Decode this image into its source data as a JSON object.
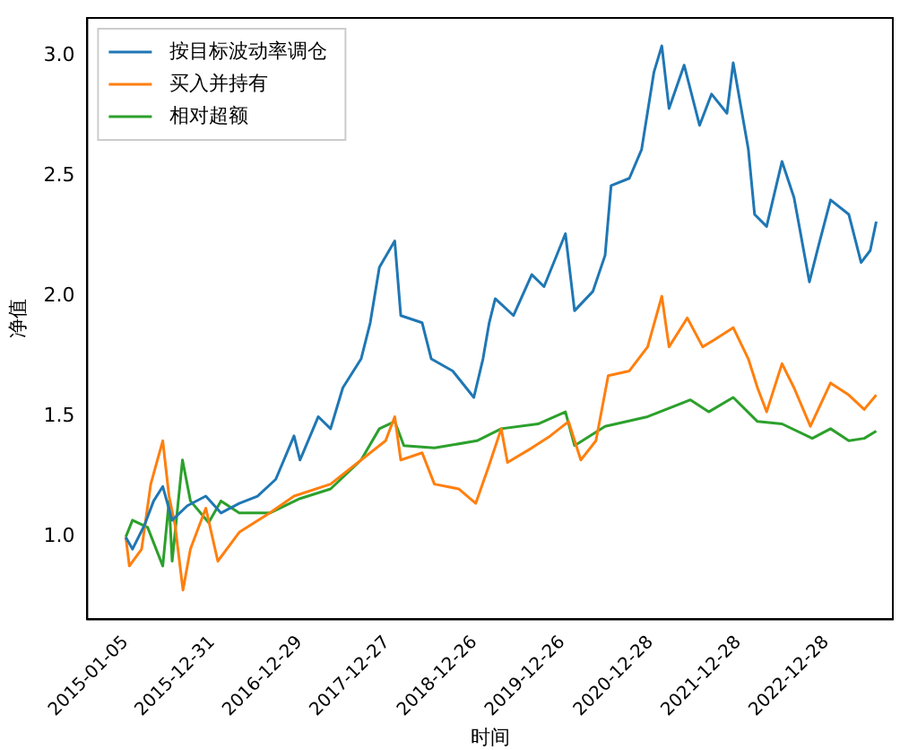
{
  "chart_data": {
    "type": "line",
    "xlabel": "时间",
    "ylabel": "净值",
    "xlim": [
      "2014-07-29",
      "2023-10-01"
    ],
    "ylim": [
      0.658,
      3.156
    ],
    "xticks": [
      "2015-01-05",
      "2015-12-31",
      "2016-12-29",
      "2017-12-27",
      "2018-12-26",
      "2019-12-26",
      "2020-12-28",
      "2021-12-28",
      "2022-12-28"
    ],
    "yticks": [
      {
        "value": 1,
        "label": "1.0"
      },
      1.5,
      {
        "value": 2,
        "label": "2.0"
      },
      2.5,
      {
        "value": 3,
        "label": "3.0"
      }
    ],
    "grid": false,
    "legend": "top left",
    "marker": "none",
    "line_style": "solid",
    "series": [
      {
        "name": "按目标波动率调仓",
        "color": "#1f77b4",
        "x": [
          "2015-01-05",
          "2015-02-02",
          "2015-03-24",
          "2015-05-01",
          "2015-06-08",
          "2015-07-17",
          "2015-09-18",
          "2015-12-04",
          "2016-02-05",
          "2016-04-21",
          "2016-07-06",
          "2016-09-20",
          "2016-12-05",
          "2016-12-30",
          "2017-03-16",
          "2017-05-06",
          "2017-06-26",
          "2017-09-10",
          "2017-10-18",
          "2017-11-25",
          "2018-01-28",
          "2018-02-22",
          "2018-05-22",
          "2018-06-29",
          "2018-09-26",
          "2018-12-23",
          "2019-01-30",
          "2019-02-25",
          "2019-03-22",
          "2019-06-06",
          "2019-08-21",
          "2019-10-11",
          "2020-01-08",
          "2020-02-15",
          "2020-05-01",
          "2020-06-21",
          "2020-07-16",
          "2020-09-30",
          "2020-11-20",
          "2021-01-10",
          "2021-02-12",
          "2021-03-14",
          "2021-05-16",
          "2021-07-19",
          "2021-09-07",
          "2021-11-10",
          "2021-12-06",
          "2022-02-07",
          "2022-03-05",
          "2022-04-24",
          "2022-06-27",
          "2022-08-16",
          "2022-10-19",
          "2022-11-26",
          "2023-01-15",
          "2023-04-01",
          "2023-05-22",
          "2023-06-29",
          "2023-07-24"
        ],
        "values": [
          1.0,
          0.95,
          1.05,
          1.15,
          1.21,
          1.07,
          1.13,
          1.17,
          1.1,
          1.14,
          1.17,
          1.24,
          1.42,
          1.32,
          1.5,
          1.45,
          1.62,
          1.74,
          1.89,
          2.12,
          2.23,
          1.92,
          1.89,
          1.74,
          1.69,
          1.58,
          1.74,
          1.89,
          1.99,
          1.92,
          2.09,
          2.04,
          2.26,
          1.94,
          2.02,
          2.17,
          2.46,
          2.49,
          2.61,
          2.93,
          3.04,
          2.78,
          2.96,
          2.71,
          2.84,
          2.76,
          2.97,
          2.61,
          2.34,
          2.29,
          2.56,
          2.41,
          2.06,
          2.21,
          2.4,
          2.34,
          2.14,
          2.19,
          2.31
        ]
      },
      {
        "name": "买入并持有",
        "color": "#ff7f0e",
        "x": [
          "2015-01-05",
          "2015-01-20",
          "2015-03-12",
          "2015-04-19",
          "2015-06-08",
          "2015-07-04",
          "2015-07-29",
          "2015-08-31",
          "2015-10-01",
          "2015-12-04",
          "2016-01-23",
          "2016-04-21",
          "2016-08-26",
          "2016-12-05",
          "2017-05-06",
          "2017-09-10",
          "2017-12-21",
          "2018-01-28",
          "2018-02-22",
          "2018-05-22",
          "2018-07-12",
          "2018-10-21",
          "2018-12-31",
          "2019-02-25",
          "2019-04-16",
          "2019-05-12",
          "2019-08-21",
          "2019-11-06",
          "2020-01-21",
          "2020-03-12",
          "2020-05-14",
          "2020-07-04",
          "2020-09-30",
          "2020-12-15",
          "2021-02-12",
          "2021-03-14",
          "2021-05-29",
          "2021-08-01",
          "2021-09-20",
          "2021-12-06",
          "2022-02-07",
          "2022-03-17",
          "2022-04-24",
          "2022-06-27",
          "2022-08-16",
          "2022-10-23",
          "2023-01-15",
          "2023-04-01",
          "2023-06-04",
          "2023-07-24"
        ],
        "values": [
          1.0,
          0.88,
          0.95,
          1.22,
          1.4,
          1.17,
          1.05,
          0.78,
          0.95,
          1.12,
          0.9,
          1.02,
          1.1,
          1.17,
          1.22,
          1.32,
          1.4,
          1.5,
          1.32,
          1.35,
          1.22,
          1.2,
          1.14,
          1.3,
          1.45,
          1.31,
          1.37,
          1.42,
          1.48,
          1.32,
          1.4,
          1.67,
          1.69,
          1.79,
          2.0,
          1.79,
          1.91,
          1.79,
          1.82,
          1.87,
          1.74,
          1.62,
          1.52,
          1.72,
          1.62,
          1.46,
          1.64,
          1.59,
          1.53,
          1.59
        ]
      },
      {
        "name": "相对超额",
        "color": "#2ca02c",
        "x": [
          "2015-01-05",
          "2015-02-02",
          "2015-04-06",
          "2015-06-08",
          "2015-07-04",
          "2015-07-17",
          "2015-08-29",
          "2015-10-01",
          "2015-12-16",
          "2016-02-05",
          "2016-04-21",
          "2016-08-26",
          "2016-12-30",
          "2017-05-06",
          "2017-09-10",
          "2017-11-25",
          "2018-01-28",
          "2018-03-07",
          "2018-07-12",
          "2019-01-05",
          "2019-04-16",
          "2019-09-16",
          "2020-01-08",
          "2020-02-15",
          "2020-06-21",
          "2020-12-15",
          "2021-06-11",
          "2021-08-26",
          "2021-12-06",
          "2022-03-17",
          "2022-06-27",
          "2022-10-31",
          "2023-01-15",
          "2023-04-01",
          "2023-06-04",
          "2023-07-24"
        ],
        "values": [
          1.0,
          1.07,
          1.04,
          0.88,
          1.15,
          0.9,
          1.32,
          1.15,
          1.06,
          1.15,
          1.1,
          1.1,
          1.16,
          1.2,
          1.32,
          1.45,
          1.48,
          1.38,
          1.37,
          1.4,
          1.45,
          1.47,
          1.52,
          1.38,
          1.46,
          1.5,
          1.57,
          1.52,
          1.58,
          1.48,
          1.47,
          1.41,
          1.45,
          1.4,
          1.41,
          1.44
        ]
      }
    ]
  }
}
